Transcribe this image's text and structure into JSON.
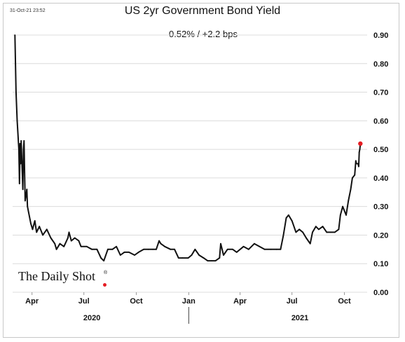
{
  "header": {
    "timestamp": "31-Oct-21 23:52",
    "title": "US 2yr Government Bond Yield",
    "subtitle": "0.52%  /  +2.2 bps"
  },
  "logo": {
    "text": "The Daily Shot",
    "mark": "®",
    "dot_color": "#e51d23"
  },
  "colors": {
    "line": "#111111",
    "grid": "#dcdcdc",
    "endpoint": "#e51d23"
  },
  "chart_data": {
    "type": "line",
    "title": "US 2yr Government Bond Yield",
    "xlabel": "",
    "ylabel": "",
    "ylim": [
      0.0,
      0.9
    ],
    "yticks": [
      "0.00",
      "0.10",
      "0.20",
      "0.30",
      "0.40",
      "0.50",
      "0.60",
      "0.70",
      "0.80",
      "0.90"
    ],
    "xticks": [
      {
        "date": "2020-04-01",
        "label": "Apr"
      },
      {
        "date": "2020-07-01",
        "label": "Jul"
      },
      {
        "date": "2020-10-01",
        "label": "Oct"
      },
      {
        "date": "2021-01-01",
        "label": "Jan"
      },
      {
        "date": "2021-04-01",
        "label": "Apr"
      },
      {
        "date": "2021-07-01",
        "label": "Jul"
      },
      {
        "date": "2021-10-01",
        "label": "Oct"
      }
    ],
    "years": [
      {
        "date": "2020-07-15",
        "label": "2020"
      },
      {
        "date": "2021-07-15",
        "label": "2021"
      }
    ],
    "axis_position": "right",
    "grid": true,
    "series": [
      {
        "values": [
          [
            "2020-03-02",
            0.9
          ],
          [
            "2020-03-04",
            0.7
          ],
          [
            "2020-03-06",
            0.6
          ],
          [
            "2020-03-09",
            0.5
          ],
          [
            "2020-03-10",
            0.38
          ],
          [
            "2020-03-11",
            0.52
          ],
          [
            "2020-03-12",
            0.45
          ],
          [
            "2020-03-13",
            0.53
          ],
          [
            "2020-03-16",
            0.36
          ],
          [
            "2020-03-17",
            0.5
          ],
          [
            "2020-03-18",
            0.53
          ],
          [
            "2020-03-19",
            0.42
          ],
          [
            "2020-03-20",
            0.32
          ],
          [
            "2020-03-23",
            0.36
          ],
          [
            "2020-03-24",
            0.3
          ],
          [
            "2020-03-26",
            0.28
          ],
          [
            "2020-03-30",
            0.24
          ],
          [
            "2020-04-02",
            0.22
          ],
          [
            "2020-04-06",
            0.25
          ],
          [
            "2020-04-09",
            0.21
          ],
          [
            "2020-04-14",
            0.23
          ],
          [
            "2020-04-20",
            0.2
          ],
          [
            "2020-04-27",
            0.22
          ],
          [
            "2020-05-04",
            0.19
          ],
          [
            "2020-05-11",
            0.17
          ],
          [
            "2020-05-14",
            0.15
          ],
          [
            "2020-05-20",
            0.17
          ],
          [
            "2020-05-27",
            0.16
          ],
          [
            "2020-06-03",
            0.19
          ],
          [
            "2020-06-05",
            0.21
          ],
          [
            "2020-06-09",
            0.18
          ],
          [
            "2020-06-15",
            0.19
          ],
          [
            "2020-06-22",
            0.18
          ],
          [
            "2020-06-26",
            0.16
          ],
          [
            "2020-07-06",
            0.16
          ],
          [
            "2020-07-15",
            0.15
          ],
          [
            "2020-07-24",
            0.15
          ],
          [
            "2020-07-31",
            0.12
          ],
          [
            "2020-08-05",
            0.11
          ],
          [
            "2020-08-12",
            0.15
          ],
          [
            "2020-08-20",
            0.15
          ],
          [
            "2020-08-27",
            0.16
          ],
          [
            "2020-09-03",
            0.13
          ],
          [
            "2020-09-10",
            0.14
          ],
          [
            "2020-09-18",
            0.14
          ],
          [
            "2020-09-28",
            0.13
          ],
          [
            "2020-10-05",
            0.14
          ],
          [
            "2020-10-14",
            0.15
          ],
          [
            "2020-10-22",
            0.15
          ],
          [
            "2020-10-30",
            0.15
          ],
          [
            "2020-11-05",
            0.15
          ],
          [
            "2020-11-10",
            0.18
          ],
          [
            "2020-11-13",
            0.17
          ],
          [
            "2020-11-20",
            0.16
          ],
          [
            "2020-11-30",
            0.15
          ],
          [
            "2020-12-07",
            0.15
          ],
          [
            "2020-12-14",
            0.12
          ],
          [
            "2020-12-21",
            0.12
          ],
          [
            "2020-12-31",
            0.12
          ],
          [
            "2021-01-06",
            0.13
          ],
          [
            "2021-01-12",
            0.15
          ],
          [
            "2021-01-19",
            0.13
          ],
          [
            "2021-01-27",
            0.12
          ],
          [
            "2021-02-03",
            0.11
          ],
          [
            "2021-02-10",
            0.11
          ],
          [
            "2021-02-17",
            0.11
          ],
          [
            "2021-02-24",
            0.12
          ],
          [
            "2021-02-26",
            0.17
          ],
          [
            "2021-03-03",
            0.13
          ],
          [
            "2021-03-10",
            0.15
          ],
          [
            "2021-03-19",
            0.15
          ],
          [
            "2021-03-26",
            0.14
          ],
          [
            "2021-04-07",
            0.16
          ],
          [
            "2021-04-16",
            0.15
          ],
          [
            "2021-04-26",
            0.17
          ],
          [
            "2021-05-05",
            0.16
          ],
          [
            "2021-05-14",
            0.15
          ],
          [
            "2021-05-25",
            0.15
          ],
          [
            "2021-06-04",
            0.15
          ],
          [
            "2021-06-11",
            0.15
          ],
          [
            "2021-06-16",
            0.2
          ],
          [
            "2021-06-21",
            0.26
          ],
          [
            "2021-06-25",
            0.27
          ],
          [
            "2021-07-01",
            0.25
          ],
          [
            "2021-07-08",
            0.21
          ],
          [
            "2021-07-14",
            0.22
          ],
          [
            "2021-07-20",
            0.21
          ],
          [
            "2021-07-26",
            0.19
          ],
          [
            "2021-08-02",
            0.17
          ],
          [
            "2021-08-06",
            0.21
          ],
          [
            "2021-08-12",
            0.23
          ],
          [
            "2021-08-17",
            0.22
          ],
          [
            "2021-08-24",
            0.23
          ],
          [
            "2021-08-31",
            0.21
          ],
          [
            "2021-09-07",
            0.21
          ],
          [
            "2021-09-14",
            0.21
          ],
          [
            "2021-09-21",
            0.22
          ],
          [
            "2021-09-24",
            0.27
          ],
          [
            "2021-09-28",
            0.3
          ],
          [
            "2021-10-04",
            0.27
          ],
          [
            "2021-10-08",
            0.32
          ],
          [
            "2021-10-12",
            0.36
          ],
          [
            "2021-10-15",
            0.4
          ],
          [
            "2021-10-19",
            0.41
          ],
          [
            "2021-10-21",
            0.46
          ],
          [
            "2021-10-22",
            0.45
          ],
          [
            "2021-10-25",
            0.45
          ],
          [
            "2021-10-26",
            0.44
          ],
          [
            "2021-10-27",
            0.49
          ],
          [
            "2021-10-28",
            0.5
          ],
          [
            "2021-10-29",
            0.52
          ]
        ]
      }
    ]
  }
}
